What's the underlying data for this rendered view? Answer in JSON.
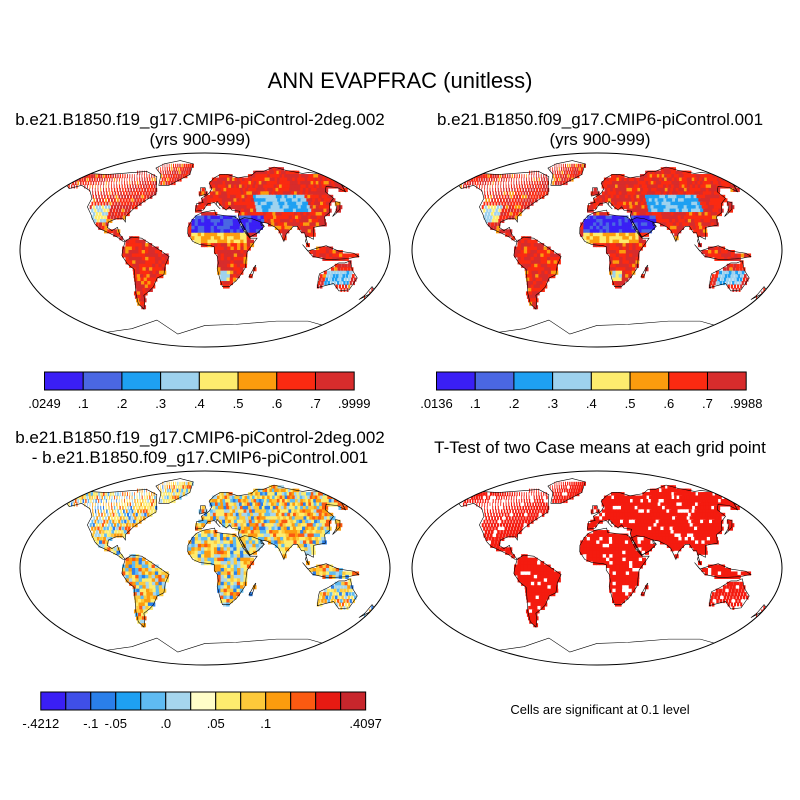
{
  "main_title": "ANN EVAPFRAC (unitless)",
  "panels": [
    {
      "id": "case1",
      "title_line1": "b.e21.B1850.f19_g17.CMIP6-piControl-2deg.002",
      "title_line2": "(yrs 900-999)"
    },
    {
      "id": "case2",
      "title_line1": "b.e21.B1850.f09_g17.CMIP6-piControl.001",
      "title_line2": "(yrs 900-999)"
    },
    {
      "id": "diff",
      "title_line1": "b.e21.B1850.f19_g17.CMIP6-piControl-2deg.002",
      "title_line2": "- b.e21.B1850.f09_g17.CMIP6-piControl.001"
    },
    {
      "id": "ttest",
      "title_line1": "T-Test of two Case means at each grid point",
      "title_line2": ""
    }
  ],
  "colorbars": {
    "case1": {
      "colors": [
        "#3a1ff5",
        "#4a67e3",
        "#1ea0f2",
        "#9ed2ee",
        "#fdec6e",
        "#fc9c0e",
        "#fb2a11",
        "#d72c2c"
      ],
      "labels": [
        ".0249",
        ".1",
        ".2",
        ".3",
        ".4",
        ".5",
        ".6",
        ".7",
        ".9999"
      ]
    },
    "case2": {
      "colors": [
        "#3a1ff5",
        "#4a67e3",
        "#1ea0f2",
        "#9ed2ee",
        "#fdec6e",
        "#fc9c0e",
        "#fb2a11",
        "#d72c2c"
      ],
      "labels": [
        ".0136",
        ".1",
        ".2",
        ".3",
        ".4",
        ".5",
        ".6",
        ".7",
        ".9988"
      ]
    },
    "diff": {
      "colors": [
        "#3a1ff5",
        "#3f4fe8",
        "#2a7fea",
        "#1ea0f2",
        "#5fbbf2",
        "#a6d6ee",
        "#fffdc8",
        "#fdec6e",
        "#fdc93a",
        "#fc9c0e",
        "#fb5a11",
        "#e61a12",
        "#c8262c"
      ],
      "labels": [
        "-.4212",
        "",
        "-.1",
        "-.05",
        "",
        ".0",
        "",
        ".05",
        "",
        ".1",
        "",
        "",
        "",
        ".4097"
      ]
    }
  },
  "significance_note": "Cells are significant at 0.1 level",
  "map_colors": {
    "wet": "#d72c2c",
    "mid": "#fc9c0e",
    "dry": "#3a1ff5",
    "midblue": "#1ea0f2",
    "diff_base": "#fdec6e",
    "diff_pos": "#fc9c0e",
    "diff_neg": "#1ea0f2",
    "signif": "#f41b0f",
    "ocean": "#ffffff",
    "coast": "#000000"
  }
}
